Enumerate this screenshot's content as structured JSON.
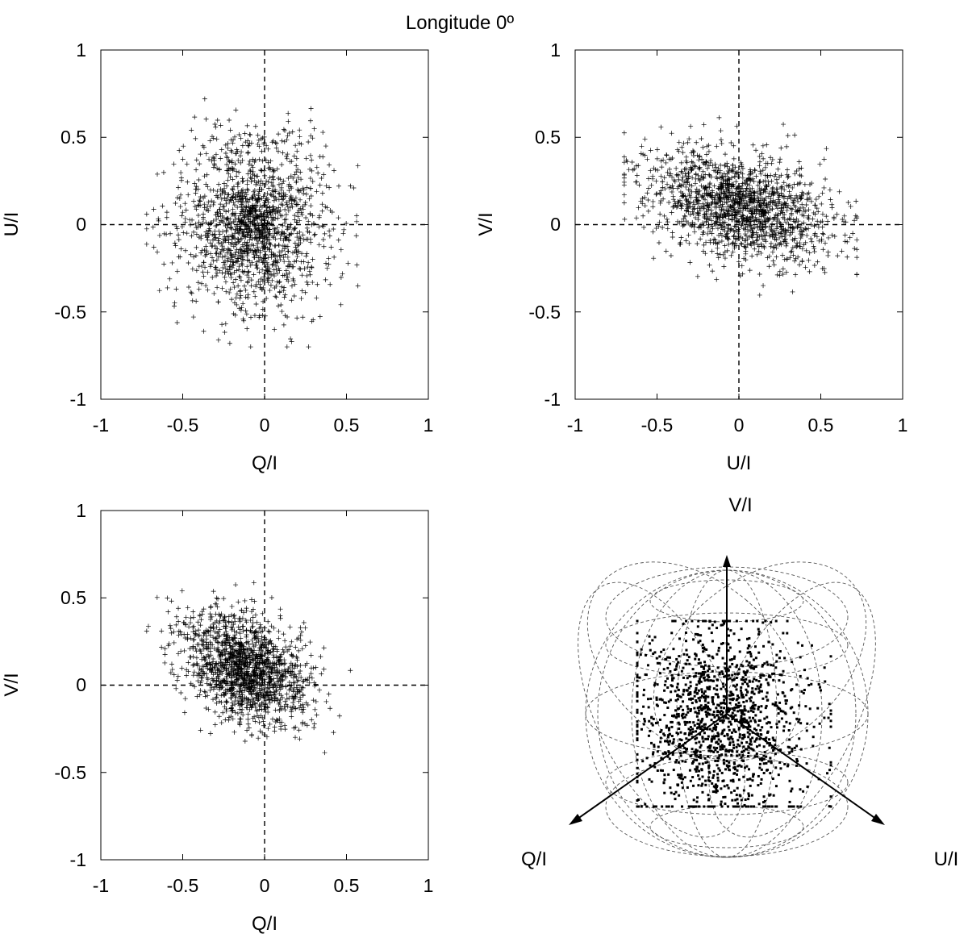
{
  "figure": {
    "title": "Longitude 0º"
  },
  "chart_data": [
    {
      "type": "scatter",
      "marker": "plus",
      "xlabel": "Q/I",
      "ylabel": "U/I",
      "xlim": [
        -1,
        1
      ],
      "ylim": [
        -1,
        1
      ],
      "xticks": [
        "-1",
        "-0.5",
        "0",
        "0.5",
        "1"
      ],
      "yticks": [
        "-1",
        "-0.5",
        "0",
        "0.5",
        "1"
      ],
      "zero_lines": "dashed",
      "distribution": {
        "points": 1500,
        "x_center": -0.08,
        "y_center": 0.0,
        "x_spread": 0.23,
        "y_spread": 0.26,
        "x_range": [
          -0.72,
          0.57
        ],
        "y_range": [
          -0.7,
          0.72
        ]
      }
    },
    {
      "type": "scatter",
      "marker": "plus",
      "xlabel": "U/I",
      "ylabel": "V/I",
      "xlim": [
        -1,
        1
      ],
      "ylim": [
        -1,
        1
      ],
      "xticks": [
        "-1",
        "-0.5",
        "0",
        "0.5",
        "1"
      ],
      "yticks": [
        "-1",
        "-0.5",
        "0",
        "0.5",
        "1"
      ],
      "zero_lines": "dashed",
      "distribution": {
        "points": 1500,
        "x_center": 0.0,
        "y_center": 0.1,
        "x_spread": 0.28,
        "y_spread": 0.15,
        "slope": -0.22,
        "x_range": [
          -0.7,
          0.72
        ],
        "y_range": [
          -0.6,
          0.75
        ]
      }
    },
    {
      "type": "scatter",
      "marker": "plus",
      "xlabel": "Q/I",
      "ylabel": "V/I",
      "xlim": [
        -1,
        1
      ],
      "ylim": [
        -1,
        1
      ],
      "xticks": [
        "-1",
        "-0.5",
        "0",
        "0.5",
        "1"
      ],
      "yticks": [
        "-1",
        "-0.5",
        "0",
        "0.5",
        "1"
      ],
      "zero_lines": "dashed",
      "distribution": {
        "points": 1500,
        "x_center": -0.12,
        "y_center": 0.1,
        "x_spread": 0.19,
        "y_spread": 0.15,
        "slope": -0.3,
        "x_range": [
          -0.72,
          0.57
        ],
        "y_range": [
          -0.6,
          0.75
        ]
      }
    },
    {
      "type": "scatter",
      "projection": "poincare-sphere",
      "marker": "square",
      "axis_labels": {
        "v": "V/I",
        "q": "Q/I",
        "u": "U/I"
      },
      "distribution": {
        "points": 1400
      }
    }
  ]
}
